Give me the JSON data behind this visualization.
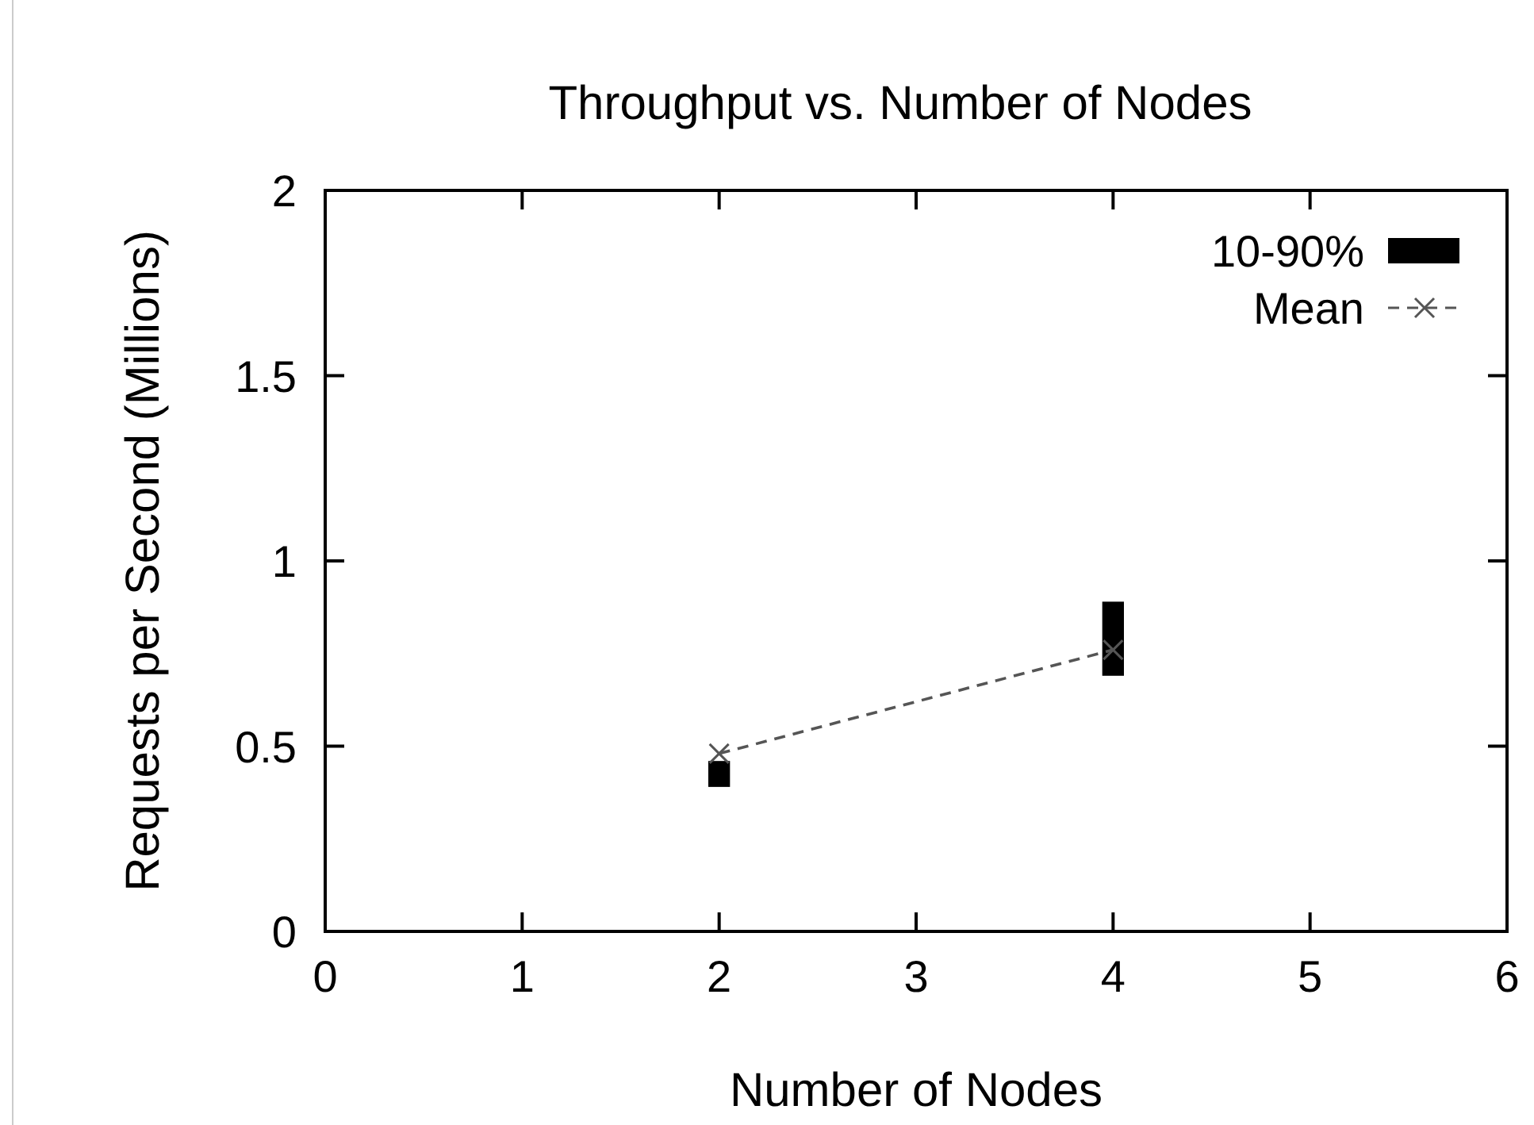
{
  "chart_data": {
    "type": "bar",
    "title": "Throughput vs. Number of Nodes",
    "xlabel": "Number of Nodes",
    "ylabel": "Requests per Second (Millions)",
    "x": [
      2,
      4
    ],
    "xlim": [
      0,
      6
    ],
    "xticks": [
      0,
      1,
      2,
      3,
      4,
      5,
      6
    ],
    "ylim": [
      0,
      2
    ],
    "yticks": [
      0,
      0.5,
      1,
      1.5,
      2
    ],
    "grid": false,
    "legend": "top right",
    "series": [
      {
        "name": "10-90%",
        "color": "#000000",
        "base": [
          0.39,
          0.69
        ],
        "values": [
          0.07,
          0.2
        ]
      },
      {
        "name": "Mean",
        "type": "line",
        "color": "#555555",
        "values": [
          0.48,
          0.76
        ],
        "marker": "cross",
        "line_style": "dashed"
      }
    ]
  }
}
